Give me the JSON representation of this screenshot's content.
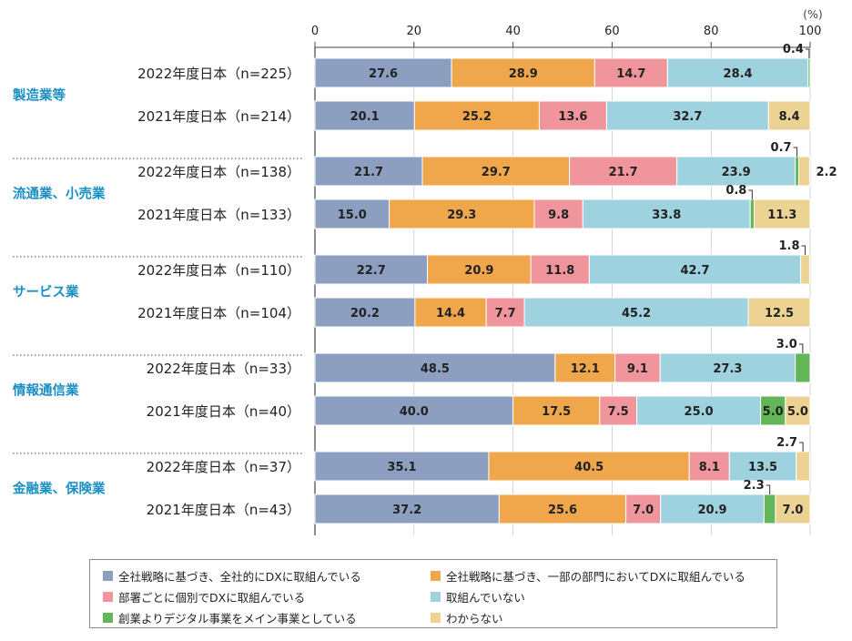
{
  "chart_data": {
    "type": "bar",
    "orientation": "horizontal",
    "stacked": true,
    "unit_label": "(%)",
    "xlim": [
      0,
      100
    ],
    "x_ticks": [
      "0",
      "20",
      "40",
      "60",
      "80",
      "100"
    ],
    "groups": [
      {
        "name": "製造業等",
        "rows": [
          {
            "label": "2022年度日本（n=225）",
            "values": [
              27.6,
              28.9,
              14.7,
              28.4,
              0.4,
              0
            ]
          },
          {
            "label": "2021年度日本（n=214）",
            "values": [
              20.1,
              25.2,
              13.6,
              32.7,
              0,
              8.4
            ]
          }
        ]
      },
      {
        "name": "流通業、小売業",
        "rows": [
          {
            "label": "2022年度日本（n=138）",
            "values": [
              21.7,
              29.7,
              21.7,
              23.9,
              0.7,
              2.2
            ]
          },
          {
            "label": "2021年度日本（n=133）",
            "values": [
              15.0,
              29.3,
              9.8,
              33.8,
              0.8,
              11.3
            ]
          }
        ]
      },
      {
        "name": "サービス業",
        "rows": [
          {
            "label": "2022年度日本（n=110）",
            "values": [
              22.7,
              20.9,
              11.8,
              42.7,
              0,
              1.8
            ]
          },
          {
            "label": "2021年度日本（n=104）",
            "values": [
              20.2,
              14.4,
              7.7,
              45.2,
              0,
              12.5
            ]
          }
        ]
      },
      {
        "name": "情報通信業",
        "rows": [
          {
            "label": "2022年度日本（n=33）",
            "values": [
              48.5,
              12.1,
              9.1,
              27.3,
              3.0,
              0
            ]
          },
          {
            "label": "2021年度日本（n=40）",
            "values": [
              40.0,
              17.5,
              7.5,
              25.0,
              5.0,
              5.0
            ]
          }
        ]
      },
      {
        "name": "金融業、保険業",
        "rows": [
          {
            "label": "2022年度日本（n=37）",
            "values": [
              35.1,
              40.5,
              8.1,
              13.5,
              0,
              2.7
            ]
          },
          {
            "label": "2021年度日本（n=43）",
            "values": [
              37.2,
              25.6,
              7.0,
              20.9,
              2.3,
              7.0
            ]
          }
        ]
      }
    ],
    "series": [
      {
        "name": "全社戦略に基づき、全社的にDXに取組んでいる",
        "color": "#8c9fc1"
      },
      {
        "name": "全社戦略に基づき、一部の部門においてDXに取組んでいる",
        "color": "#f0a64b"
      },
      {
        "name": "部署ごとに個別でDXに取組んでいる",
        "color": "#f0959b"
      },
      {
        "name": "取組んでいない",
        "color": "#9ed2df"
      },
      {
        "name": "創業よりデジタル事業をメイン事業としている",
        "color": "#63b657"
      },
      {
        "name": "わからない",
        "color": "#ecd394"
      }
    ],
    "callouts": [
      {
        "group": 0,
        "row": 0,
        "series": 4,
        "text": "0.4"
      },
      {
        "group": 1,
        "row": 0,
        "series": 4,
        "text": "0.7"
      },
      {
        "group": 1,
        "row": 0,
        "series": 5,
        "text": "2.2"
      },
      {
        "group": 1,
        "row": 1,
        "series": 4,
        "text": "0.8"
      },
      {
        "group": 2,
        "row": 0,
        "series": 5,
        "text": "1.8"
      },
      {
        "group": 3,
        "row": 0,
        "series": 4,
        "text": "3.0"
      },
      {
        "group": 4,
        "row": 0,
        "series": 5,
        "text": "2.7"
      },
      {
        "group": 4,
        "row": 1,
        "series": 4,
        "text": "2.3"
      }
    ],
    "colors": {
      "group_label": "#1a8fc4",
      "axis": "#444444",
      "separator": "#666666",
      "grid": "#bbbbbb"
    }
  }
}
